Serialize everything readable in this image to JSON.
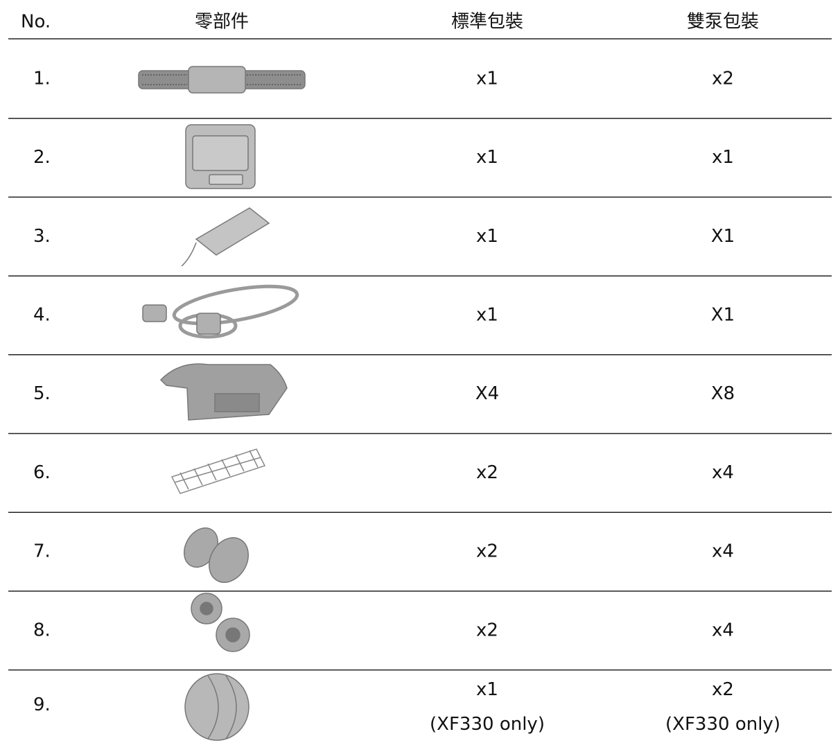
{
  "header": [
    "No.",
    "零部件",
    "標準包裝",
    "雙泵包裝"
  ],
  "rows": [
    {
      "no": "1.",
      "standard": "x1",
      "double": "x2"
    },
    {
      "no": "2.",
      "standard": "x1",
      "double": "x1"
    },
    {
      "no": "3.",
      "standard": "x1",
      "double": "X1"
    },
    {
      "no": "4.",
      "standard": "x1",
      "double": "X1"
    },
    {
      "no": "5.",
      "standard": "X4",
      "double": "X8"
    },
    {
      "no": "6.",
      "standard": "x2",
      "double": "x4"
    },
    {
      "no": "7.",
      "standard": "x2",
      "double": "x4"
    },
    {
      "no": "8.",
      "standard": "x2",
      "double": "x4"
    },
    {
      "no": "9.",
      "standard": "x1",
      "standard_note": "(XF330 only)",
      "double": "x2",
      "double_note": "(XF330 only)"
    }
  ]
}
